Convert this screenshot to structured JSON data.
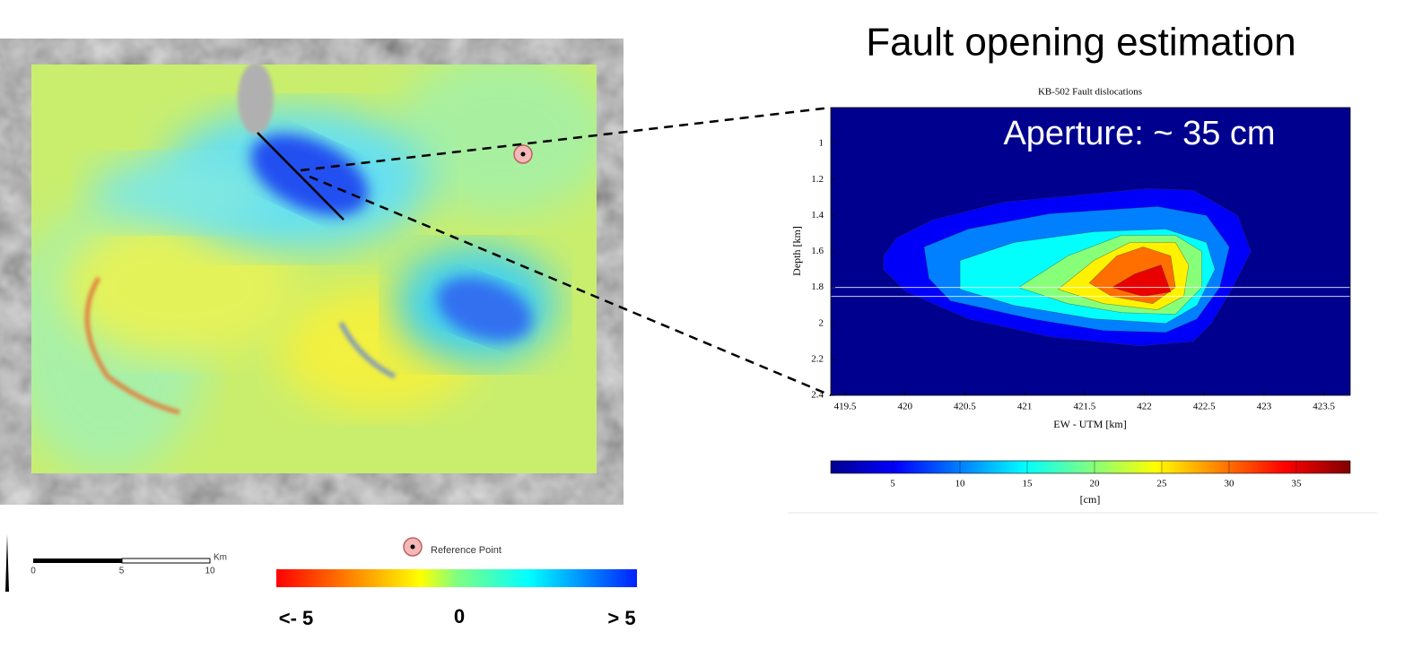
{
  "title": "Fault opening estimation",
  "map": {
    "scale_bar": {
      "ticks": [
        0,
        5,
        10
      ],
      "unit": "Km"
    },
    "legend": {
      "reference_point": "Reference Point",
      "colorbar_labels": [
        "<- 5",
        "0",
        "> 5"
      ]
    }
  },
  "chart_data": {
    "type": "contour",
    "title": "KB-502 Fault dislocations",
    "annotation": "Aperture: ~ 35 cm",
    "xlabel": "EW - UTM [km]",
    "ylabel": "Depth [km]",
    "xlim": [
      419.38,
      423.72
    ],
    "ylim": [
      0.8,
      2.4
    ],
    "y_inverted": true,
    "xticks": [
      419.5,
      420,
      420.5,
      421,
      421.5,
      422,
      422.5,
      423,
      423.5
    ],
    "yticks": [
      1,
      1.2,
      1.4,
      1.6,
      1.8,
      2,
      2.2,
      2.4
    ],
    "hlines": [
      1.8,
      1.85
    ],
    "colormap": [
      "#00008f",
      "#0000ff",
      "#0080ff",
      "#00ffff",
      "#80ff80",
      "#ffff00",
      "#ff8000",
      "#ff0000",
      "#800000"
    ],
    "clim": [
      0.4,
      39
    ],
    "colorbar_label": "[cm]",
    "colorbar_ticks": [
      5,
      10,
      15,
      20,
      25,
      30,
      35
    ],
    "contours": [
      {
        "level": 5,
        "x": [
          419.82,
          419.93,
          420.23,
          420.83,
          422.03,
          422.41,
          422.78,
          422.89,
          422.74,
          422.56,
          422.41,
          421.96,
          421.21,
          420.53,
          420.01,
          419.82
        ],
        "y": [
          1.625,
          1.525,
          1.425,
          1.325,
          1.25,
          1.26,
          1.4,
          1.6,
          1.8,
          2.0,
          2.1,
          2.125,
          2.075,
          1.975,
          1.825,
          1.7
        ]
      },
      {
        "level": 10,
        "x": [
          420.16,
          420.53,
          421.21,
          422.11,
          422.52,
          422.71,
          422.63,
          422.44,
          422.18,
          421.66,
          421.06,
          420.38,
          420.2
        ],
        "y": [
          1.575,
          1.475,
          1.39,
          1.35,
          1.4,
          1.575,
          1.8,
          1.975,
          2.05,
          2.04,
          1.975,
          1.875,
          1.75
        ]
      },
      {
        "level": 15,
        "x": [
          420.46,
          420.91,
          421.58,
          422.18,
          422.52,
          422.59,
          422.44,
          422.18,
          421.58,
          420.91,
          420.46
        ],
        "y": [
          1.65,
          1.55,
          1.49,
          1.475,
          1.55,
          1.7,
          1.9,
          2.0,
          1.975,
          1.9,
          1.81
        ]
      },
      {
        "level": 20,
        "x": [
          420.95,
          421.36,
          421.81,
          422.26,
          422.48,
          422.48,
          422.26,
          421.81,
          421.36
        ],
        "y": [
          1.8,
          1.625,
          1.51,
          1.51,
          1.6,
          1.8,
          1.95,
          1.94,
          1.89
        ]
      },
      {
        "level": 25,
        "x": [
          421.28,
          421.58,
          421.88,
          422.26,
          422.37,
          422.33,
          422.11,
          421.66
        ],
        "y": [
          1.81,
          1.65,
          1.55,
          1.55,
          1.675,
          1.85,
          1.925,
          1.89
        ]
      },
      {
        "level": 30,
        "x": [
          421.54,
          421.77,
          421.99,
          422.22,
          422.26,
          422.07,
          421.73
        ],
        "y": [
          1.775,
          1.625,
          1.575,
          1.625,
          1.8,
          1.89,
          1.85
        ]
      },
      {
        "level": 35,
        "x": [
          421.73,
          421.92,
          422.14,
          422.22,
          421.99
        ],
        "y": [
          1.8,
          1.725,
          1.675,
          1.825,
          1.85
        ]
      }
    ]
  }
}
